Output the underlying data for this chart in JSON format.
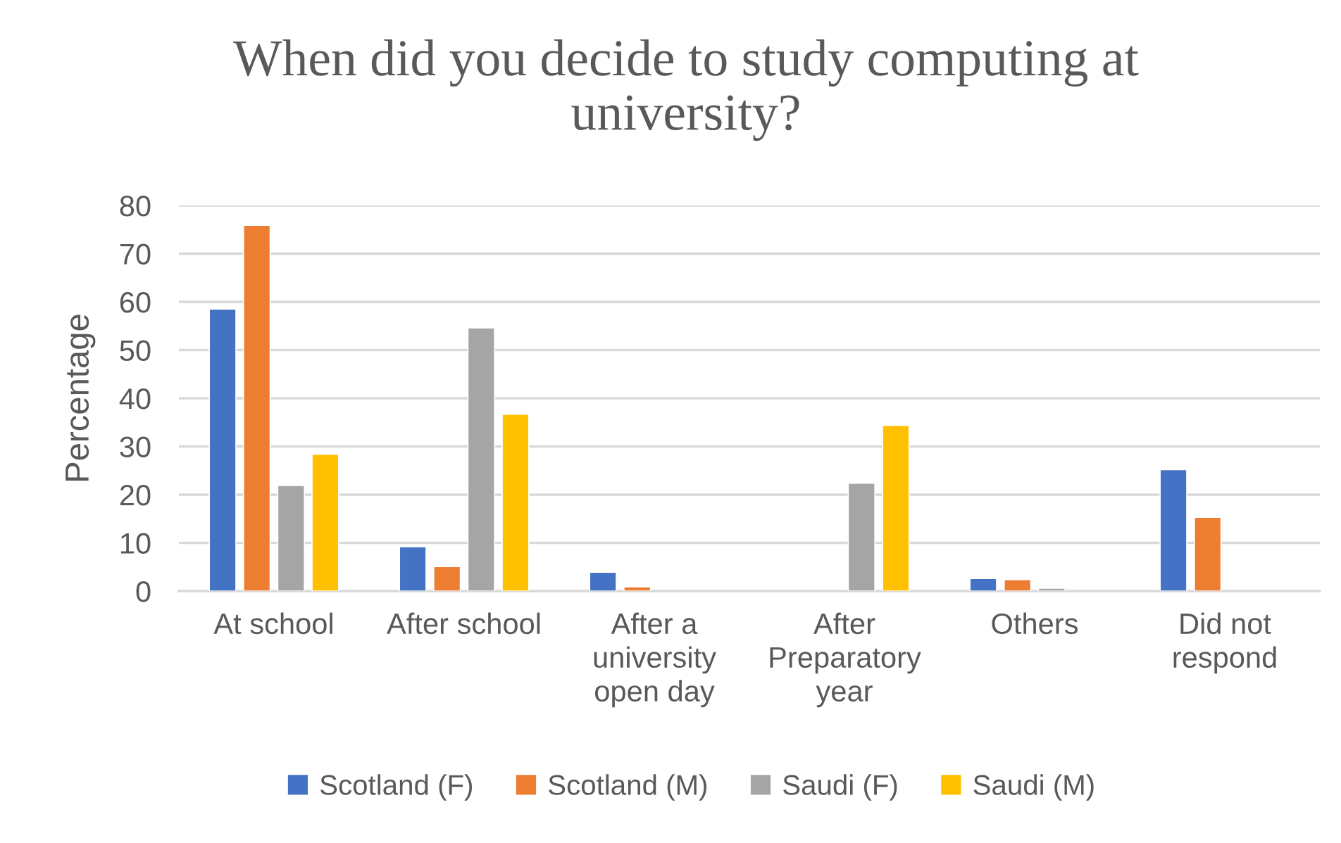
{
  "chart_data": {
    "type": "bar",
    "title": "When did you decide to study computing at university?",
    "ylabel": "Percentage",
    "categories": [
      "At school",
      "After school",
      "After a university open day",
      "After Preparatory year",
      "Others",
      "Did not respond"
    ],
    "series": [
      {
        "name": "Scotland (F)",
        "color": "#4472c4",
        "values": [
          58.5,
          9.2,
          3.9,
          null,
          2.6,
          25.2
        ]
      },
      {
        "name": "Scotland (M)",
        "color": "#ed7d31",
        "values": [
          75.9,
          5.1,
          0.9,
          null,
          2.4,
          15.3
        ]
      },
      {
        "name": "Saudi (F)",
        "color": "#a5a5a5",
        "values": [
          21.9,
          54.6,
          null,
          22.4,
          0.6,
          null
        ]
      },
      {
        "name": "Saudi (M)",
        "color": "#ffc000",
        "values": [
          28.4,
          36.7,
          null,
          34.4,
          null,
          null
        ]
      }
    ],
    "ylim": [
      0,
      80
    ],
    "yticks": [
      0,
      10,
      20,
      30,
      40,
      50,
      60,
      70,
      80
    ],
    "grid": "y",
    "legend": "bottom"
  }
}
